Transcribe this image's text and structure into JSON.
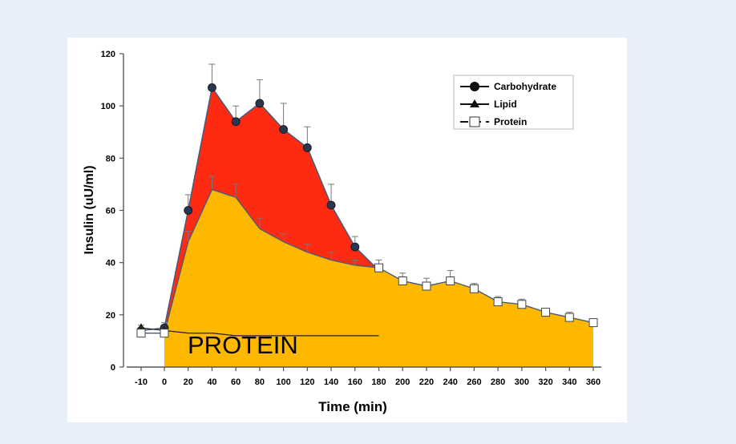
{
  "chart_data": {
    "type": "area",
    "xlabel": "Time (min)",
    "ylabel": "Insulin (uU/ml)",
    "xlim": [
      -10,
      360
    ],
    "ylim": [
      0,
      120
    ],
    "x_ticks": [
      -10,
      0,
      20,
      40,
      60,
      80,
      100,
      120,
      140,
      160,
      180,
      200,
      220,
      240,
      260,
      280,
      300,
      320,
      340,
      360
    ],
    "y_ticks": [
      0,
      20,
      40,
      60,
      80,
      100,
      120
    ],
    "x_tick_labels": [
      "-10",
      "0",
      "20",
      "40",
      "60",
      "80",
      "100",
      "120",
      "140",
      "160",
      "180",
      "200",
      "220",
      "240",
      "260",
      "280",
      "300",
      "320",
      "340",
      "360"
    ],
    "y_tick_labels": [
      "0",
      "20",
      "40",
      "60",
      "80",
      "100",
      "120"
    ],
    "annotation": "PROTEIN",
    "colors": {
      "carbohydrate_fill": "#ff2a12",
      "protein_fill": "#ffb800",
      "line": "#4a5a7a",
      "axis": "#555555"
    },
    "series": [
      {
        "name": "Carbohydrate",
        "marker": "circle",
        "x": [
          -10,
          0,
          20,
          40,
          60,
          80,
          100,
          120,
          140,
          160,
          180
        ],
        "values": [
          14,
          15,
          60,
          107,
          94,
          101,
          91,
          84,
          62,
          46,
          37
        ],
        "error": [
          2,
          2,
          6,
          9,
          6,
          9,
          10,
          8,
          8,
          4,
          0
        ]
      },
      {
        "name": "Lipid",
        "marker": "triangle",
        "x": [
          -10,
          0,
          20,
          40,
          60,
          80,
          100,
          120,
          140,
          160,
          180
        ],
        "values": [
          15,
          14,
          13,
          13,
          12,
          12,
          12,
          12,
          12,
          12,
          12
        ],
        "error": [
          2,
          2,
          1,
          1,
          1,
          1,
          1,
          1,
          1,
          1,
          1
        ]
      },
      {
        "name": "Protein",
        "marker": "square",
        "x": [
          -10,
          0,
          20,
          40,
          60,
          80,
          100,
          120,
          140,
          160,
          180,
          200,
          220,
          240,
          260,
          280,
          300,
          320,
          340,
          360
        ],
        "values": [
          13,
          13,
          48,
          68,
          65,
          53,
          48,
          44,
          41,
          39,
          38,
          33,
          31,
          33,
          30,
          25,
          24,
          21,
          19,
          17
        ],
        "error": [
          2,
          2,
          4,
          5,
          5,
          4,
          3,
          3,
          3,
          2,
          3,
          3,
          3,
          4,
          2,
          2,
          2,
          1,
          2,
          1
        ]
      }
    ],
    "legend": {
      "placement": "top-right",
      "entries": [
        "Carbohydrate",
        "Lipid",
        "Protein"
      ]
    }
  }
}
